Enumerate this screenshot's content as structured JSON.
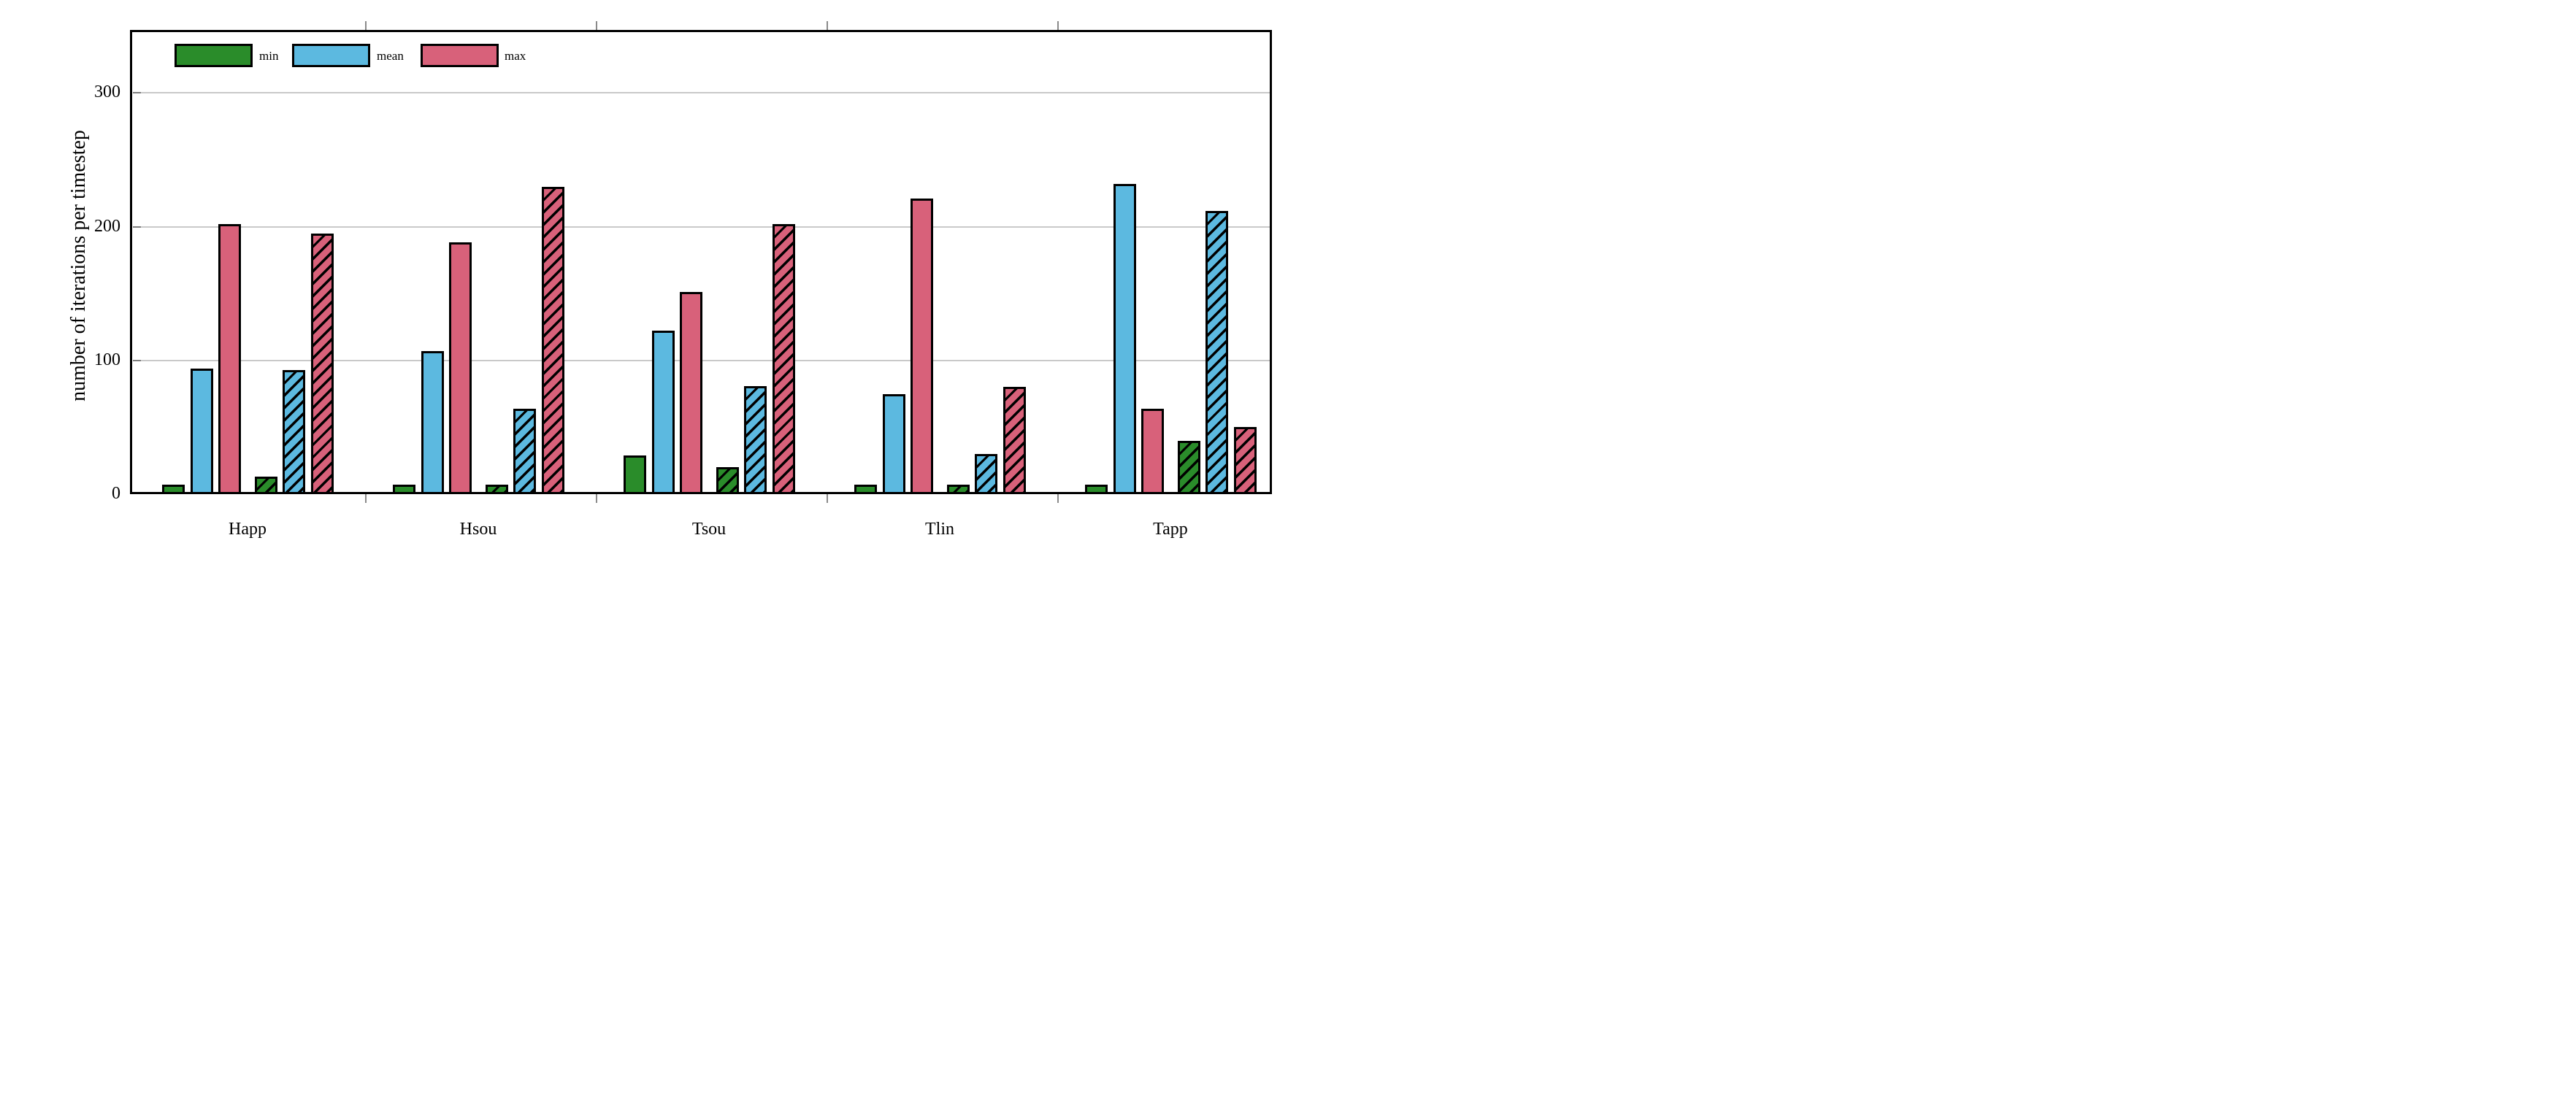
{
  "chart_data": {
    "type": "bar",
    "title": "",
    "xlabel": "",
    "ylabel": "number of iterations per timestep",
    "categories": [
      "Happ",
      "Hsou",
      "Tsou",
      "Tlin",
      "Tapp"
    ],
    "yticks": [
      0,
      100,
      200,
      300
    ],
    "ylim": [
      0,
      345
    ],
    "grid": "horizontal",
    "legend_position": "top-left-inside",
    "legend": [
      {
        "label": "min",
        "color": "#2a8c2a"
      },
      {
        "label": "mean",
        "color": "#5cb9e0"
      },
      {
        "label": "max",
        "color": "#d8617a"
      }
    ],
    "series": [
      {
        "name": "min",
        "style": "solid",
        "values": [
          7,
          7,
          29,
          7,
          7
        ]
      },
      {
        "name": "mean",
        "style": "solid",
        "values": [
          94,
          107,
          122,
          75,
          232
        ]
      },
      {
        "name": "max",
        "style": "solid",
        "values": [
          202,
          188,
          151,
          221,
          64
        ]
      },
      {
        "name": "min",
        "style": "hatched",
        "values": [
          13,
          7,
          20,
          7,
          40
        ]
      },
      {
        "name": "mean",
        "style": "hatched",
        "values": [
          93,
          64,
          81,
          30,
          212
        ]
      },
      {
        "name": "max",
        "style": "hatched",
        "values": [
          195,
          230,
          202,
          80,
          50
        ]
      }
    ]
  },
  "colors": {
    "bar_outline": "#000000",
    "gridline": "#c9c9c9",
    "tick": "#7e7e7e",
    "background": "#ffffff"
  }
}
